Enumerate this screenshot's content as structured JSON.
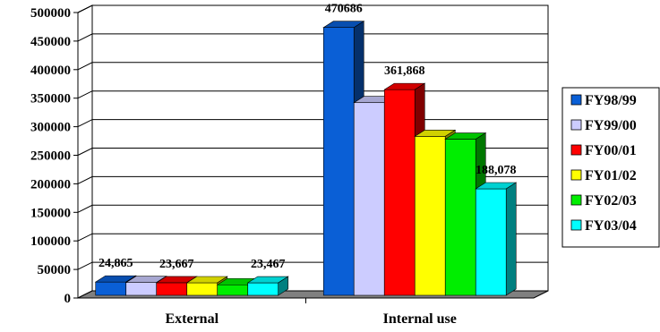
{
  "chart_data": {
    "type": "bar",
    "style": "3d-clustered-column",
    "title": "",
    "xlabel": "",
    "ylabel": "",
    "ylim": [
      0,
      500000
    ],
    "yticks": [
      0,
      50000,
      100000,
      150000,
      200000,
      250000,
      300000,
      350000,
      400000,
      450000,
      500000
    ],
    "grid": true,
    "legend_position": "right",
    "categories": [
      "External",
      "Internal use"
    ],
    "series": [
      {
        "name": "FY98/99",
        "color": "#0a5fd6",
        "values": [
          24865,
          470686
        ],
        "labels": [
          "24,865",
          "470686"
        ]
      },
      {
        "name": "FY99/00",
        "color": "#ccccff",
        "values": [
          24000,
          339000
        ],
        "labels": [
          "",
          ""
        ]
      },
      {
        "name": "FY00/01",
        "color": "#ff0000",
        "values": [
          23667,
          361868
        ],
        "labels": [
          "23,667",
          "361,868"
        ]
      },
      {
        "name": "FY01/02",
        "color": "#ffff00",
        "values": [
          23500,
          280000
        ],
        "labels": [
          "",
          ""
        ]
      },
      {
        "name": "FY02/03",
        "color": "#00ee00",
        "values": [
          20000,
          275000
        ],
        "labels": [
          "",
          ""
        ]
      },
      {
        "name": "FY03/04",
        "color": "#00ffff",
        "values": [
          23467,
          188078
        ],
        "labels": [
          "23,467",
          "188,078"
        ]
      }
    ]
  }
}
